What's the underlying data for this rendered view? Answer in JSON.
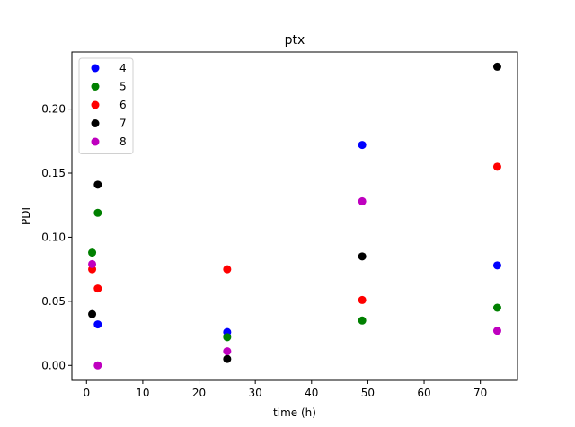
{
  "chart_data": {
    "type": "scatter",
    "title": "ptx",
    "xlabel": "time (h)",
    "ylabel": "PDI",
    "xlim": [
      -2.6,
      76.6
    ],
    "ylim": [
      -0.0117,
      0.2445
    ],
    "xticks": [
      0,
      10,
      20,
      30,
      40,
      50,
      60,
      70
    ],
    "yticks": [
      0.0,
      0.05,
      0.1,
      0.15,
      0.2
    ],
    "ytick_labels": [
      "0.00",
      "0.05",
      "0.10",
      "0.15",
      "0.20"
    ],
    "grid": false,
    "legend_position": "top-left",
    "series": [
      {
        "name": "4",
        "color": "#0000ff",
        "x": [
          2,
          25,
          49,
          73
        ],
        "y": [
          0.032,
          0.026,
          0.172,
          0.078
        ]
      },
      {
        "name": "5",
        "color": "#008000",
        "x": [
          1,
          2,
          25,
          49,
          73
        ],
        "y": [
          0.088,
          0.119,
          0.022,
          0.035,
          0.045
        ]
      },
      {
        "name": "6",
        "color": "#ff0000",
        "x": [
          1,
          2,
          25,
          49,
          73
        ],
        "y": [
          0.075,
          0.06,
          0.075,
          0.051,
          0.155
        ]
      },
      {
        "name": "7",
        "color": "#000000",
        "x": [
          1,
          2,
          25,
          49,
          73
        ],
        "y": [
          0.04,
          0.141,
          0.005,
          0.085,
          0.233
        ]
      },
      {
        "name": "8",
        "color": "#bf00bf",
        "x": [
          1,
          2,
          25,
          49,
          73
        ],
        "y": [
          0.079,
          0.0,
          0.011,
          0.128,
          0.027
        ]
      }
    ]
  }
}
